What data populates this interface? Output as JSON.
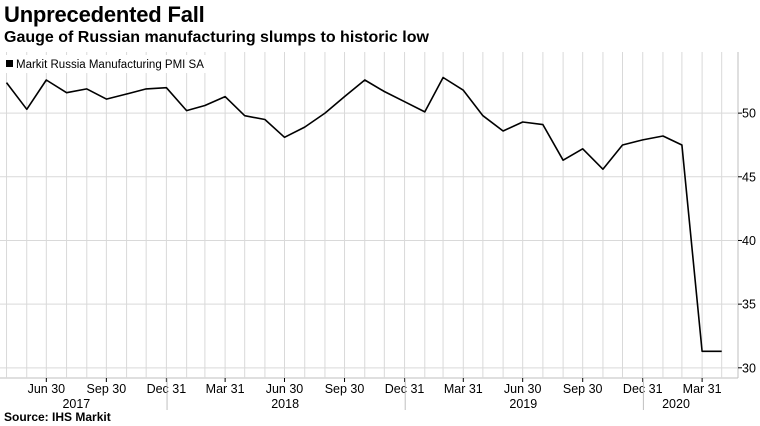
{
  "title": "Unprecedented Fall",
  "subtitle": "Gauge of Russian manufacturing slumps to historic low",
  "source": "Source: IHS Markit",
  "colors": {
    "line": "#000000",
    "grid": "#d9d9d9",
    "axis": "#bfbfbf"
  },
  "chart_data": {
    "type": "line",
    "series": [
      {
        "name": "Markit Russia Manufacturing PMI SA",
        "x": [
          "2017-04-30",
          "2017-05-31",
          "2017-06-30",
          "2017-07-31",
          "2017-08-31",
          "2017-09-30",
          "2017-10-31",
          "2017-11-30",
          "2017-12-31",
          "2018-01-31",
          "2018-02-28",
          "2018-03-31",
          "2018-04-30",
          "2018-05-31",
          "2018-06-30",
          "2018-07-31",
          "2018-08-31",
          "2018-09-30",
          "2018-10-31",
          "2018-11-30",
          "2018-12-31",
          "2019-01-31",
          "2019-02-28",
          "2019-03-31",
          "2019-04-30",
          "2019-05-31",
          "2019-06-30",
          "2019-07-31",
          "2019-08-31",
          "2019-09-30",
          "2019-10-31",
          "2019-11-30",
          "2019-12-31",
          "2020-01-31",
          "2020-02-29",
          "2020-03-31",
          "2020-04-30"
        ],
        "values": [
          52.4,
          50.3,
          52.6,
          51.6,
          51.9,
          51.1,
          51.5,
          51.9,
          52.0,
          50.2,
          50.6,
          51.3,
          49.8,
          49.5,
          48.1,
          48.9,
          50.0,
          51.3,
          52.6,
          51.7,
          50.9,
          50.1,
          52.8,
          51.8,
          49.8,
          48.6,
          49.3,
          49.1,
          46.3,
          47.2,
          45.6,
          47.5,
          47.9,
          48.2,
          47.5,
          31.3,
          31.3
        ]
      }
    ],
    "y_ticks": [
      30,
      35,
      40,
      45,
      50
    ],
    "ylim": [
      29.2,
      54.8
    ],
    "x_tick_labels": [
      {
        "label": "Jun 30",
        "date": "2017-06-30"
      },
      {
        "label": "Sep 30",
        "date": "2017-09-30"
      },
      {
        "label": "Dec 31",
        "date": "2017-12-31"
      },
      {
        "label": "Mar 31",
        "date": "2018-03-31"
      },
      {
        "label": "Jun 30",
        "date": "2018-06-30"
      },
      {
        "label": "Sep 30",
        "date": "2018-09-30"
      },
      {
        "label": "Dec 31",
        "date": "2018-12-31"
      },
      {
        "label": "Mar 31",
        "date": "2019-03-31"
      },
      {
        "label": "Jun 30",
        "date": "2019-06-30"
      },
      {
        "label": "Sep 30",
        "date": "2019-09-30"
      },
      {
        "label": "Dec 31",
        "date": "2019-12-31"
      },
      {
        "label": "Mar 31",
        "date": "2020-03-31"
      }
    ],
    "year_labels": [
      {
        "label": "2017",
        "center": "2017-08-15"
      },
      {
        "label": "2018",
        "center": "2018-07-01"
      },
      {
        "label": "2019",
        "center": "2019-07-01"
      },
      {
        "label": "2020",
        "center": "2020-02-20"
      }
    ],
    "year_boundaries": [
      "2018-01-01",
      "2019-01-01",
      "2020-01-01"
    ],
    "xlim": [
      "2017-04-20",
      "2020-05-25"
    ],
    "y_axis_side": "right",
    "grid": true,
    "legend_placement": "top-left"
  }
}
